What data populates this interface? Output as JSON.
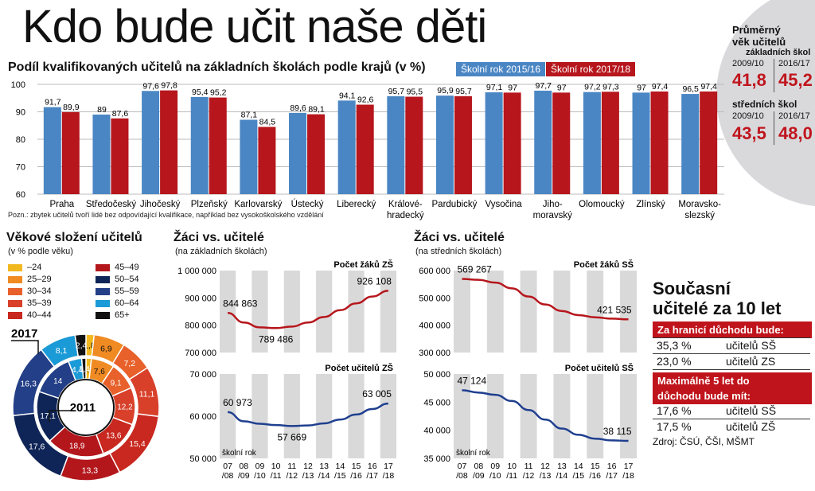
{
  "headline": "Kdo bude učit naše děti",
  "main_chart_title": "Podíl kvalifikovaných učitelů na základních školách podle krajů (v %)",
  "note": "Pozn.: zbytek učitelů tvoří lidé bez odpovídající kvalifikace, například bez vysokoškolského vzdělání",
  "colors": {
    "blue": "#4b86c4",
    "red": "#b6161c",
    "grid": "#bbbbbb",
    "panel": "#d9d9dc",
    "band": "#d9d9d9"
  },
  "chart_data": [
    {
      "type": "bar",
      "categories": [
        "Praha",
        "Středočeský",
        "Jihočeský",
        "Plzeňský",
        "Karlovarský",
        "Ústecký",
        "Liberecký",
        "Královéhradecký",
        "Pardubický",
        "Vysočina",
        "Jihomoravský",
        "Olomoucký",
        "Zlínský",
        "Moravskoslezský"
      ],
      "category_lines": [
        [
          "Praha"
        ],
        [
          "Středočeský"
        ],
        [
          "Jihočeský"
        ],
        [
          "Plzeňský"
        ],
        [
          "Karlovarský"
        ],
        [
          "Ústecký"
        ],
        [
          "Liberecký"
        ],
        [
          "Králové-",
          "hradecký"
        ],
        [
          "Pardubický"
        ],
        [
          "Vysočina"
        ],
        [
          "Jiho-",
          "moravský"
        ],
        [
          "Olomoucký"
        ],
        [
          "Zlínský"
        ],
        [
          "Moravsko-",
          "slezský"
        ]
      ],
      "series": [
        {
          "name": "Školní rok 2015/16",
          "values": [
            91.7,
            89.0,
            97.6,
            95.4,
            87.1,
            89.6,
            94.1,
            95.7,
            95.9,
            97.1,
            97.7,
            97.2,
            97.0,
            96.5
          ]
        },
        {
          "name": "Školní rok 2017/18",
          "values": [
            89.9,
            87.6,
            97.8,
            95.2,
            84.5,
            89.1,
            92.6,
            95.5,
            95.7,
            97.0,
            97.0,
            97.3,
            97.4,
            97.4
          ]
        }
      ],
      "ylim": [
        60,
        100
      ],
      "yticks": [
        60,
        70,
        80,
        90,
        100
      ],
      "grid": true,
      "legend": "top-right"
    },
    {
      "type": "pie",
      "title": "Věkové složení učitelů",
      "subtitle": "(v % podle věku)",
      "legend": [
        "–24",
        "25–29",
        "30–34",
        "35–39",
        "40–44",
        "45–49",
        "50–54",
        "55–59",
        "60–64",
        "65+"
      ],
      "legend_colors": [
        "#f2b81f",
        "#f08b23",
        "#e8602a",
        "#d8402a",
        "#c8281f",
        "#b3171c",
        "#0f2557",
        "#233f87",
        "#1a9ad6",
        "#111111"
      ],
      "year_outer": "2017",
      "year_inner": "2011",
      "outer_ring": [
        1.8,
        6.9,
        7.2,
        11.1,
        15.4,
        13.3,
        17.6,
        16.3,
        8.1,
        2.4
      ],
      "inner_ring": [
        1.8,
        7.6,
        9.1,
        12.2,
        13.6,
        18.9,
        17.1,
        14.0,
        4.4,
        1.4
      ]
    },
    {
      "type": "line",
      "title": "Žáci vs. učitelé",
      "subtitle": "(na základních školách)",
      "series_label": "Počet žáků ZŠ",
      "x": [
        "07/08",
        "08/09",
        "09/10",
        "10/11",
        "11/12",
        "12/13",
        "13/14",
        "14/15",
        "15/16",
        "16/17",
        "17/18"
      ],
      "labels": [
        {
          "index": 0,
          "text": "844 863"
        },
        {
          "index": 3,
          "text": "789 486"
        },
        {
          "index": 10,
          "text": "926 108"
        }
      ],
      "ylim": [
        700000,
        1000000
      ],
      "yticks": [
        "700 000",
        "800 000",
        "900 000",
        "1 000 000"
      ],
      "values": [
        844863,
        810000,
        792000,
        789486,
        795000,
        810000,
        830000,
        855000,
        880000,
        905000,
        926108
      ]
    },
    {
      "type": "line",
      "series_label": "Počet učitelů ZŠ",
      "x_caption": "školní rok",
      "x": [
        "07/08",
        "08/09",
        "09/10",
        "10/11",
        "11/12",
        "12/13",
        "13/14",
        "14/15",
        "15/16",
        "16/17",
        "17/18"
      ],
      "x_lines": [
        [
          "07",
          "/08"
        ],
        [
          "08",
          "/09"
        ],
        [
          "09",
          "/10"
        ],
        [
          "10",
          "/11"
        ],
        [
          "11",
          "/12"
        ],
        [
          "12",
          "/13"
        ],
        [
          "13",
          "/14"
        ],
        [
          "14",
          "/15"
        ],
        [
          "15",
          "/16"
        ],
        [
          "16",
          "/17"
        ],
        [
          "17",
          "/18"
        ]
      ],
      "labels": [
        {
          "index": 0,
          "text": "60 973"
        },
        {
          "index": 4,
          "text": "57 669"
        },
        {
          "index": 10,
          "text": "63 005"
        }
      ],
      "ylim": [
        50000,
        70000
      ],
      "yticks": [
        "50 000",
        "60 000",
        "70 000"
      ],
      "values": [
        60973,
        58800,
        58200,
        57900,
        57669,
        57800,
        58300,
        59200,
        60400,
        61700,
        63005
      ]
    },
    {
      "type": "line",
      "title": "Žáci vs. učitelé",
      "subtitle": "(na středních školách)",
      "series_label": "Počet žáků SŠ",
      "x": [
        "07/08",
        "08/09",
        "09/10",
        "10/11",
        "11/12",
        "12/13",
        "13/14",
        "14/15",
        "15/16",
        "16/17",
        "17/18"
      ],
      "labels": [
        {
          "index": 0,
          "text": "569 267"
        },
        {
          "index": 10,
          "text": "421 535"
        }
      ],
      "ylim": [
        300000,
        600000
      ],
      "yticks": [
        "300 000",
        "400 000",
        "500 000",
        "600 000"
      ],
      "values": [
        569267,
        566000,
        556000,
        535000,
        505000,
        476000,
        452000,
        437000,
        429000,
        424000,
        421535
      ]
    },
    {
      "type": "line",
      "series_label": "Počet učitelů SŠ",
      "x_caption": "školní rok",
      "x": [
        "07/08",
        "08/09",
        "09/10",
        "10/11",
        "11/12",
        "12/13",
        "13/14",
        "14/15",
        "15/16",
        "16/17",
        "17/18"
      ],
      "x_lines": [
        [
          "07",
          "/08"
        ],
        [
          "08",
          "/09"
        ],
        [
          "09",
          "/10"
        ],
        [
          "10",
          "/11"
        ],
        [
          "11",
          "/12"
        ],
        [
          "12",
          "/13"
        ],
        [
          "13",
          "/14"
        ],
        [
          "14",
          "/15"
        ],
        [
          "15",
          "/16"
        ],
        [
          "16",
          "/17"
        ],
        [
          "17",
          "/18"
        ]
      ],
      "labels": [
        {
          "index": 0,
          "text": "47 124"
        },
        {
          "index": 10,
          "text": "38 115"
        }
      ],
      "ylim": [
        35000,
        50000
      ],
      "yticks": [
        "35 000",
        "40 000",
        "45 000",
        "50 000"
      ],
      "values": [
        47124,
        46700,
        46300,
        45200,
        43600,
        41900,
        40300,
        39200,
        38500,
        38200,
        38115
      ]
    }
  ],
  "avg_age": {
    "title_line1": "Průměrný",
    "title_line2": "věk učitelů",
    "zs_label": "základních škol",
    "ss_label": "středních škol",
    "year_a": "2009/10",
    "year_b": "2016/17",
    "zs_a": "41,8",
    "zs_b": "45,2",
    "ss_a": "43,5",
    "ss_b": "48,0"
  },
  "current": {
    "title_line1": "Současní",
    "title_line2": "učitelé za 10 let",
    "bar1": "Za hranicí důchodu bude:",
    "rows1": [
      {
        "pct": "35,3 %",
        "what": "učitelů SŠ"
      },
      {
        "pct": "23,0 %",
        "what": "učitelů ZS"
      }
    ],
    "bar2_line1": "Maximálně 5 let do",
    "bar2_line2": "důchodu bude mít:",
    "rows2": [
      {
        "pct": "17,6 %",
        "what": "učitelů SŠ"
      },
      {
        "pct": "17,5 %",
        "what": "učitelů ZŠ"
      }
    ],
    "source": "Zdroj: ČSÚ, ČŠI, MŠMT"
  }
}
